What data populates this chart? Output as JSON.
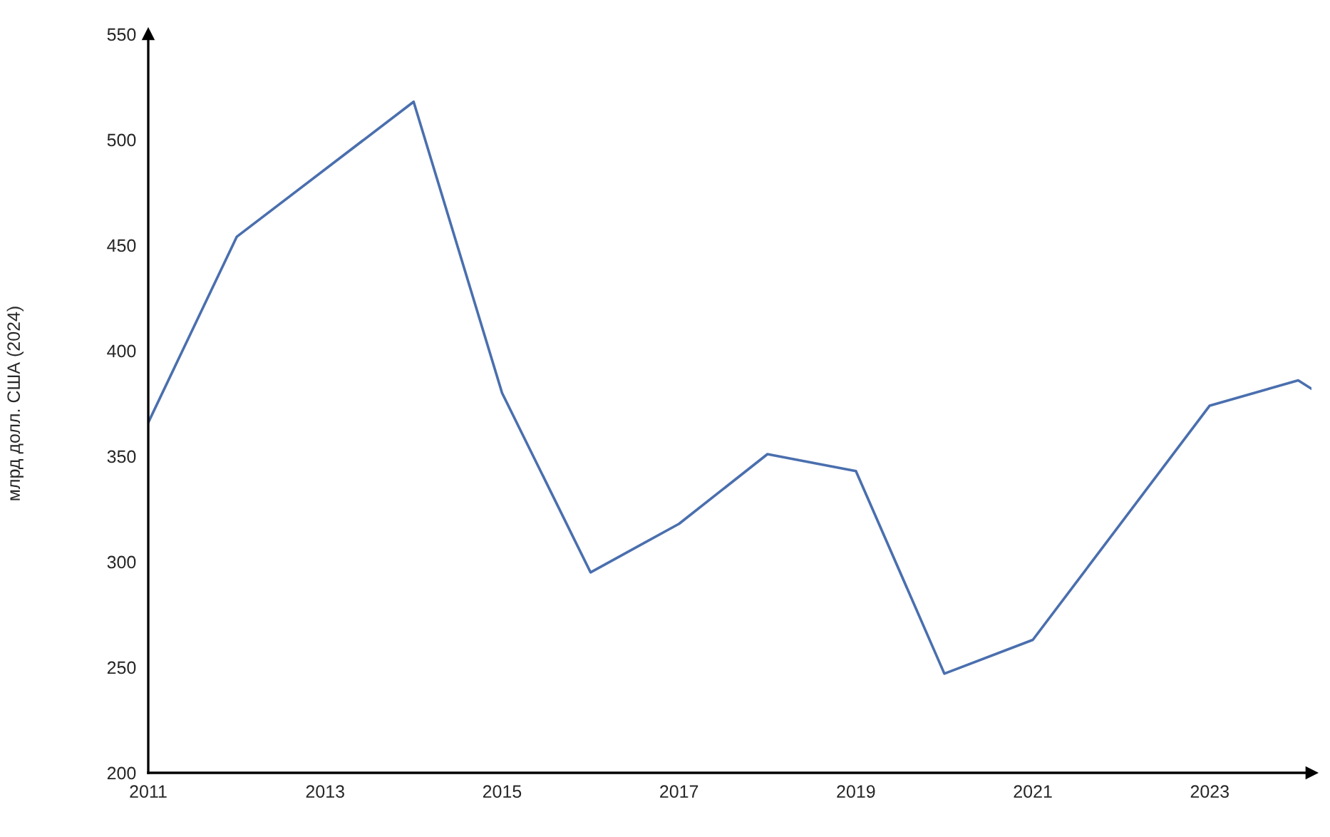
{
  "chart_data": {
    "type": "line",
    "ylabel": "млрд долл. США (2024)",
    "x": [
      2011,
      2012,
      2014,
      2015,
      2016,
      2017,
      2018,
      2019,
      2020,
      2021,
      2023,
      2024,
      2024.15
    ],
    "series": [
      {
        "color": "#4a6fae",
        "values": [
          366,
          454,
          518,
          380,
          295,
          318,
          351,
          343,
          247,
          263,
          374,
          386,
          382
        ]
      }
    ],
    "xlim": [
      2011,
      2024.15
    ],
    "xticks": [
      2011,
      2013,
      2015,
      2017,
      2019,
      2021,
      2023
    ],
    "ylim": [
      200,
      550
    ],
    "yticks": [
      200,
      250,
      300,
      350,
      400,
      450,
      500,
      550
    ],
    "grid": false,
    "marker": "none",
    "line_style": "solid"
  }
}
